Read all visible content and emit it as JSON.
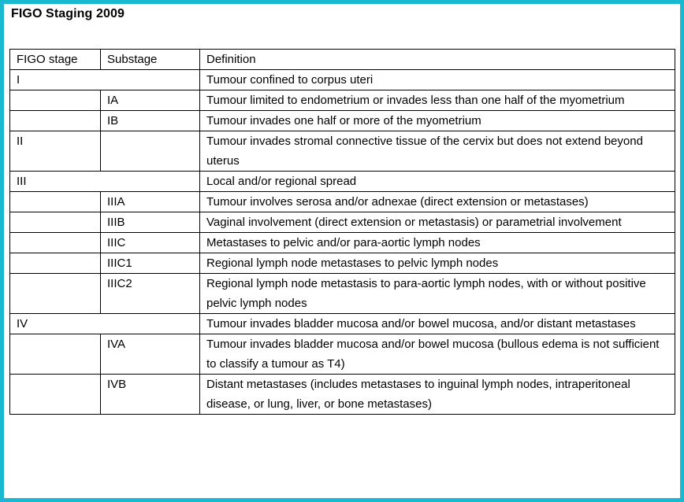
{
  "title": "FIGO Staging 2009",
  "colors": {
    "frame_border": "#1bb9d1",
    "table_border": "#000000",
    "text": "#000000",
    "background": "#ffffff"
  },
  "table": {
    "headers": [
      "FIGO stage",
      "Substage",
      "Definition"
    ],
    "rows": [
      {
        "stage": "I",
        "substage": "",
        "merged": true,
        "definition": "Tumour confined to corpus uteri"
      },
      {
        "stage": "",
        "substage": "IA",
        "merged": false,
        "definition": "Tumour limited to endometrium or invades less than one half of the myometrium"
      },
      {
        "stage": "",
        "substage": "IB",
        "merged": false,
        "definition": "Tumour invades one half or more of the myometrium"
      },
      {
        "stage": "II",
        "substage": "",
        "merged": false,
        "definition": "Tumour invades stromal connective tissue of the cervix but does not extend beyond uterus"
      },
      {
        "stage": "III",
        "substage": "",
        "merged": true,
        "definition": "Local and/or regional spread"
      },
      {
        "stage": "",
        "substage": "IIIA",
        "merged": false,
        "definition": "Tumour involves serosa and/or adnexae (direct extension or metastases)"
      },
      {
        "stage": "",
        "substage": "IIIB",
        "merged": false,
        "definition": "Vaginal involvement (direct extension or metastasis) or parametrial involvement"
      },
      {
        "stage": "",
        "substage": "IIIC",
        "merged": false,
        "definition": "Metastases to pelvic and/or para-aortic lymph nodes"
      },
      {
        "stage": "",
        "substage": "IIIC1",
        "merged": false,
        "definition": "Regional lymph node metastases to pelvic lymph nodes"
      },
      {
        "stage": "",
        "substage": "IIIC2",
        "merged": false,
        "definition": "Regional lymph node metastasis to para-aortic lymph nodes, with or without positive pelvic lymph nodes"
      },
      {
        "stage": "IV",
        "substage": "",
        "merged": true,
        "definition": "Tumour invades bladder mucosa and/or bowel mucosa, and/or distant metastases"
      },
      {
        "stage": "",
        "substage": "IVA",
        "merged": false,
        "definition": "Tumour invades bladder mucosa and/or bowel mucosa (bullous edema is not sufficient to classify a tumour as T4)"
      },
      {
        "stage": "",
        "substage": "IVB",
        "merged": false,
        "definition": "Distant metastases (includes metastases to inguinal lymph nodes, intraperitoneal disease, or lung, liver, or bone metastases)"
      }
    ]
  }
}
